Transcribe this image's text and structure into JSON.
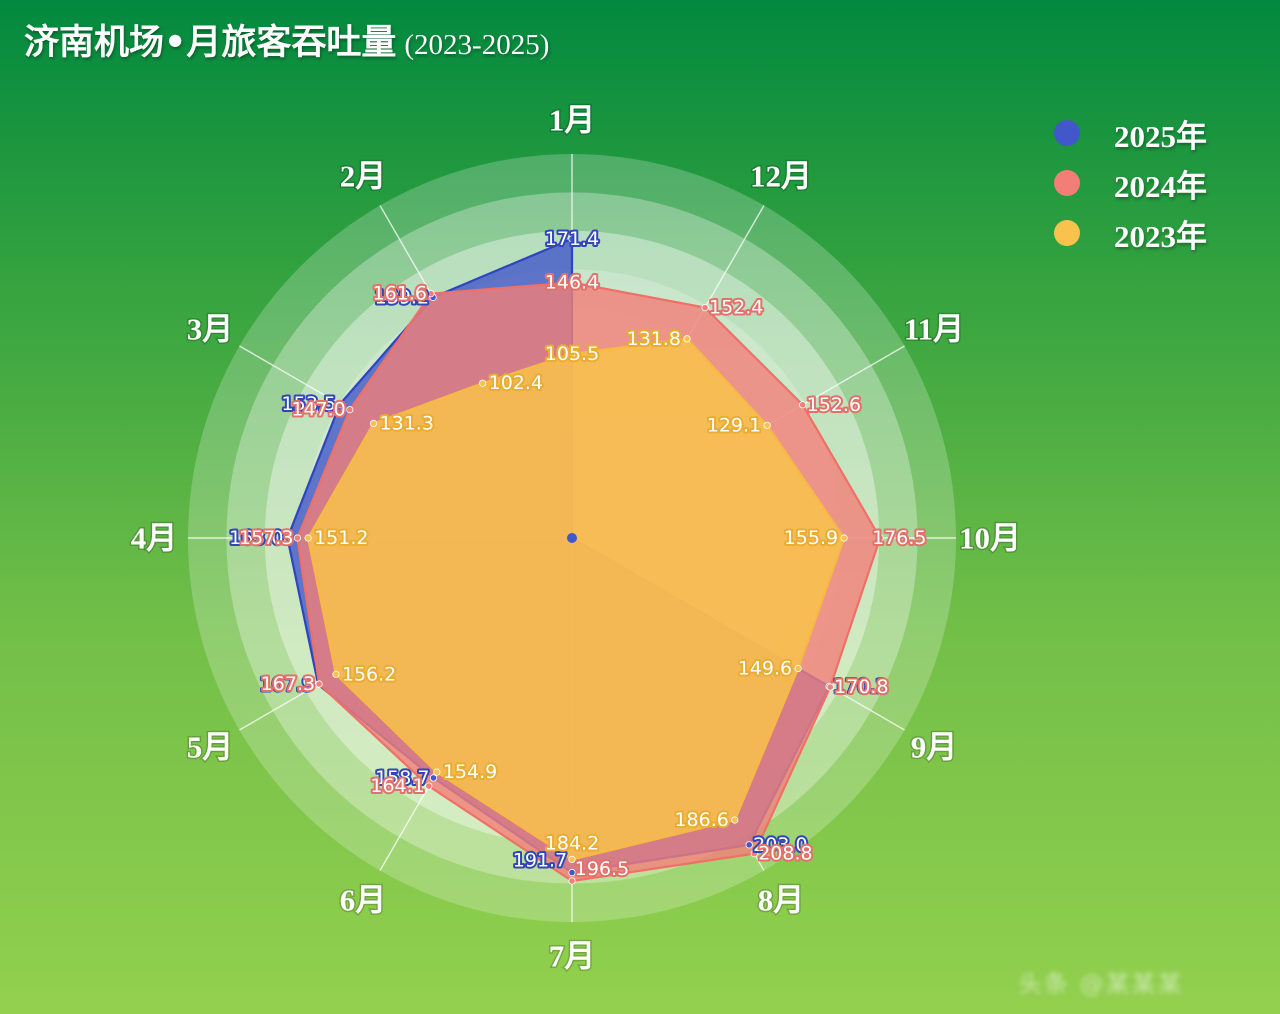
{
  "title": {
    "main": "济南机场•月旅客吞吐量",
    "sub": "(2023-2025)"
  },
  "legend": [
    {
      "label": "2025年",
      "color": "#4257c9"
    },
    {
      "label": "2024年",
      "color": "#f27e78"
    },
    {
      "label": "2023年",
      "color": "#f8c24c"
    }
  ],
  "chart_data": {
    "type": "radar",
    "title": "济南机场•月旅客吞吐量",
    "subtitle": "(2023-2025)",
    "categories": [
      "1月",
      "12月",
      "11月",
      "10月",
      "9月",
      "8月",
      "7月",
      "6月",
      "5月",
      "4月",
      "3月",
      "2月"
    ],
    "rlim": [
      0,
      220
    ],
    "grid": true,
    "legend_position": "top-right",
    "series": [
      {
        "name": "2025年",
        "color": "#4257c9",
        "values": [
          171.4,
          null,
          null,
          null,
          170.1,
          203.0,
          191.7,
          158.7,
          167.9,
          163.0,
          153.5,
          159.2
        ]
      },
      {
        "name": "2024年",
        "color": "#f27e78",
        "values": [
          146.4,
          152.4,
          152.6,
          176.5,
          170.8,
          208.8,
          196.5,
          164.1,
          167.3,
          157.3,
          147.0,
          161.6
        ]
      },
      {
        "name": "2023年",
        "color": "#f8c24c",
        "values": [
          105.5,
          131.8,
          129.1,
          155.9,
          149.6,
          186.6,
          184.2,
          154.9,
          156.2,
          151.2,
          131.3,
          102.4
        ]
      }
    ]
  },
  "watermark": "头条 @某某某"
}
